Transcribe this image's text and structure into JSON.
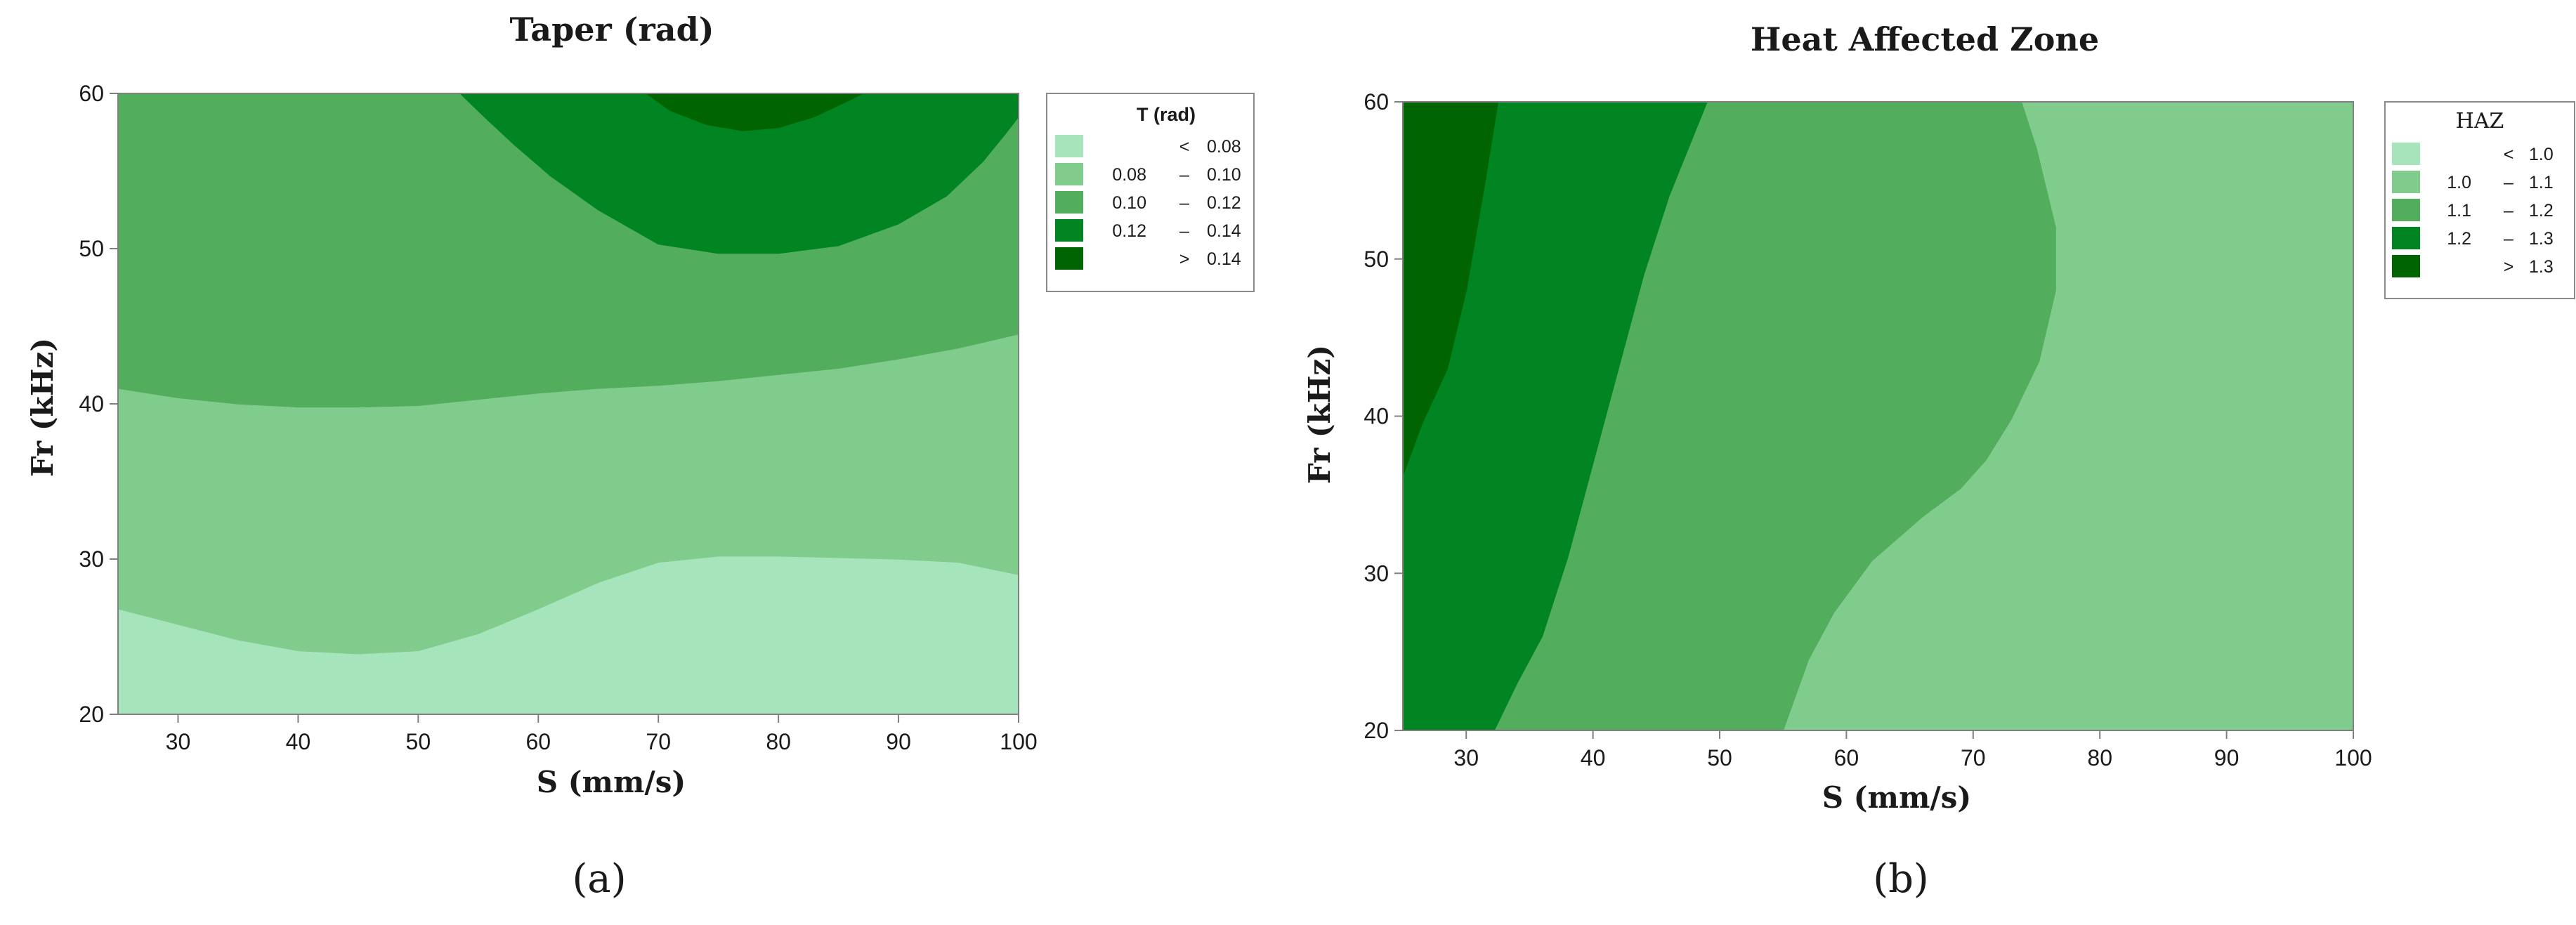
{
  "colors": {
    "levels": [
      "#a6e4bb",
      "#80cc8c",
      "#52ae5c",
      "#008522",
      "#006500"
    ],
    "background": "#ffffff",
    "axis": "#808080",
    "text": "#1a1a1a"
  },
  "panels": [
    {
      "label": "(a)",
      "title": "Taper (rad)",
      "xlabel": "S (mm/s)",
      "ylabel": "Fr (kHz)",
      "legend_title": "T (rad)"
    },
    {
      "label": "(b)",
      "title": "Heat Affected Zone",
      "xlabel": "S (mm/s)",
      "ylabel": "Fr (kHz)",
      "legend_title": "HAZ"
    }
  ],
  "chart_data": [
    {
      "type": "contour",
      "title": "Taper (rad)",
      "xlabel": "S (mm/s)",
      "ylabel": "Fr (kHz)",
      "xlim": [
        25,
        100
      ],
      "ylim": [
        20,
        60
      ],
      "xticks": [
        30,
        40,
        50,
        60,
        70,
        80,
        90,
        100
      ],
      "yticks": [
        20,
        30,
        40,
        50,
        60
      ],
      "grid": false,
      "legend_placement": "right",
      "legend": {
        "title": "T (rad)",
        "entries": [
          {
            "lo": "",
            "sym": "<",
            "hi": "0.08"
          },
          {
            "lo": "0.08",
            "sym": "–",
            "hi": "0.10"
          },
          {
            "lo": "0.10",
            "sym": "–",
            "hi": "0.12"
          },
          {
            "lo": "0.12",
            "sym": "–",
            "hi": "0.14"
          },
          {
            "lo": "",
            "sym": ">",
            "hi": "0.14"
          }
        ]
      },
      "regions": [
        {
          "level": 0,
          "polygon": [
            [
              25,
              20
            ],
            [
              100,
              20
            ],
            [
              100,
              29
            ],
            [
              95,
              29.8
            ],
            [
              90,
              30
            ],
            [
              85,
              30.1
            ],
            [
              80,
              30.2
            ],
            [
              75,
              30.2
            ],
            [
              70,
              29.8
            ],
            [
              65,
              28.5
            ],
            [
              60,
              26.8
            ],
            [
              55,
              25.2
            ],
            [
              50,
              24.1
            ],
            [
              45,
              23.9
            ],
            [
              40,
              24.1
            ],
            [
              35,
              24.8
            ],
            [
              30,
              25.8
            ],
            [
              25,
              26.8
            ]
          ]
        },
        {
          "level": 1,
          "polygon": [
            [
              25,
              26.8
            ],
            [
              30,
              25.8
            ],
            [
              35,
              24.8
            ],
            [
              40,
              24.1
            ],
            [
              45,
              23.9
            ],
            [
              50,
              24.1
            ],
            [
              55,
              25.2
            ],
            [
              60,
              26.8
            ],
            [
              65,
              28.5
            ],
            [
              70,
              29.8
            ],
            [
              75,
              30.2
            ],
            [
              80,
              30.2
            ],
            [
              85,
              30.1
            ],
            [
              90,
              30
            ],
            [
              95,
              29.8
            ],
            [
              100,
              29
            ],
            [
              100,
              44.5
            ],
            [
              95,
              43.6
            ],
            [
              90,
              42.9
            ],
            [
              85,
              42.3
            ],
            [
              80,
              41.9
            ],
            [
              75,
              41.5
            ],
            [
              70,
              41.2
            ],
            [
              65,
              41
            ],
            [
              60,
              40.7
            ],
            [
              55,
              40.3
            ],
            [
              50,
              39.9
            ],
            [
              45,
              39.8
            ],
            [
              40,
              39.8
            ],
            [
              35,
              40
            ],
            [
              30,
              40.4
            ],
            [
              25,
              41
            ]
          ]
        },
        {
          "level": 2,
          "polygon": [
            [
              25,
              41
            ],
            [
              30,
              40.4
            ],
            [
              35,
              40
            ],
            [
              40,
              39.8
            ],
            [
              45,
              39.8
            ],
            [
              50,
              39.9
            ],
            [
              55,
              40.3
            ],
            [
              60,
              40.7
            ],
            [
              65,
              41
            ],
            [
              70,
              41.2
            ],
            [
              75,
              41.5
            ],
            [
              80,
              41.9
            ],
            [
              85,
              42.3
            ],
            [
              90,
              42.9
            ],
            [
              95,
              43.6
            ],
            [
              100,
              44.5
            ],
            [
              100,
              60
            ],
            [
              25,
              60
            ]
          ]
        },
        {
          "level": 3,
          "polygon": [
            [
              53.5,
              60
            ],
            [
              55.5,
              58.5
            ],
            [
              58,
              56.7
            ],
            [
              61,
              54.7
            ],
            [
              65,
              52.5
            ],
            [
              70,
              50.3
            ],
            [
              75,
              49.7
            ],
            [
              80,
              49.7
            ],
            [
              85,
              50.2
            ],
            [
              90,
              51.6
            ],
            [
              94,
              53.4
            ],
            [
              97,
              55.6
            ],
            [
              99,
              57.5
            ],
            [
              100,
              58.5
            ],
            [
              100,
              60
            ]
          ]
        },
        {
          "level": 4,
          "polygon": [
            [
              69,
              60
            ],
            [
              71,
              58.9
            ],
            [
              74,
              58
            ],
            [
              77,
              57.6
            ],
            [
              80,
              57.8
            ],
            [
              83,
              58.5
            ],
            [
              86,
              59.6
            ],
            [
              87,
              60
            ]
          ]
        }
      ]
    },
    {
      "type": "contour",
      "title": "Heat Affected Zone",
      "xlabel": "S (mm/s)",
      "ylabel": "Fr (kHz)",
      "xlim": [
        25,
        100
      ],
      "ylim": [
        20,
        60
      ],
      "xticks": [
        30,
        40,
        50,
        60,
        70,
        80,
        90,
        100
      ],
      "yticks": [
        20,
        30,
        40,
        50,
        60
      ],
      "grid": false,
      "legend_placement": "right",
      "legend": {
        "title": "HAZ",
        "entries": [
          {
            "lo": "",
            "sym": "<",
            "hi": "1.0"
          },
          {
            "lo": "1.0",
            "sym": "–",
            "hi": "1.1"
          },
          {
            "lo": "1.1",
            "sym": "–",
            "hi": "1.2"
          },
          {
            "lo": "1.2",
            "sym": "–",
            "hi": "1.3"
          },
          {
            "lo": "",
            "sym": ">",
            "hi": "1.3"
          }
        ]
      },
      "regions": [
        {
          "level": 1,
          "polygon": [
            [
              55,
              20
            ],
            [
              100,
              20
            ],
            [
              100,
              60
            ],
            [
              73.8,
              60
            ],
            [
              75,
              57
            ],
            [
              76.5,
              52
            ],
            [
              76.5,
              48
            ],
            [
              75.2,
              43.5
            ],
            [
              73,
              39.8
            ],
            [
              71,
              37.2
            ],
            [
              69,
              35.4
            ],
            [
              66,
              33.6
            ],
            [
              62,
              30.8
            ],
            [
              59,
              27.5
            ],
            [
              57,
              24.5
            ]
          ]
        },
        {
          "level": 2,
          "polygon": [
            [
              32.2,
              20
            ],
            [
              55,
              20
            ],
            [
              57,
              24.5
            ],
            [
              59,
              27.5
            ],
            [
              62,
              30.8
            ],
            [
              66,
              33.6
            ],
            [
              69,
              35.4
            ],
            [
              71,
              37.2
            ],
            [
              73,
              39.8
            ],
            [
              75.2,
              43.5
            ],
            [
              76.5,
              48
            ],
            [
              76.5,
              52
            ],
            [
              75,
              57
            ],
            [
              73.8,
              60
            ],
            [
              49,
              60
            ],
            [
              48,
              58
            ],
            [
              46,
              54
            ],
            [
              44,
              49
            ],
            [
              42,
              43
            ],
            [
              40,
              37
            ],
            [
              38,
              31
            ],
            [
              36,
              26
            ],
            [
              34,
              23
            ]
          ]
        },
        {
          "level": 3,
          "polygon": [
            [
              25,
              20
            ],
            [
              32.2,
              20
            ],
            [
              34,
              23
            ],
            [
              36,
              26
            ],
            [
              38,
              31
            ],
            [
              40,
              37
            ],
            [
              42,
              43
            ],
            [
              44,
              49
            ],
            [
              46,
              54
            ],
            [
              48,
              58
            ],
            [
              49,
              60
            ],
            [
              32.5,
              60
            ],
            [
              31.5,
              55
            ],
            [
              30,
              48
            ],
            [
              28.5,
              43
            ],
            [
              26.5,
              39.5
            ],
            [
              25,
              36.2
            ]
          ]
        },
        {
          "level": 4,
          "polygon": [
            [
              25,
              36.2
            ],
            [
              26.5,
              39.5
            ],
            [
              28.5,
              43
            ],
            [
              30,
              48
            ],
            [
              31.5,
              55
            ],
            [
              32.5,
              60
            ],
            [
              25,
              60
            ]
          ]
        }
      ]
    }
  ]
}
